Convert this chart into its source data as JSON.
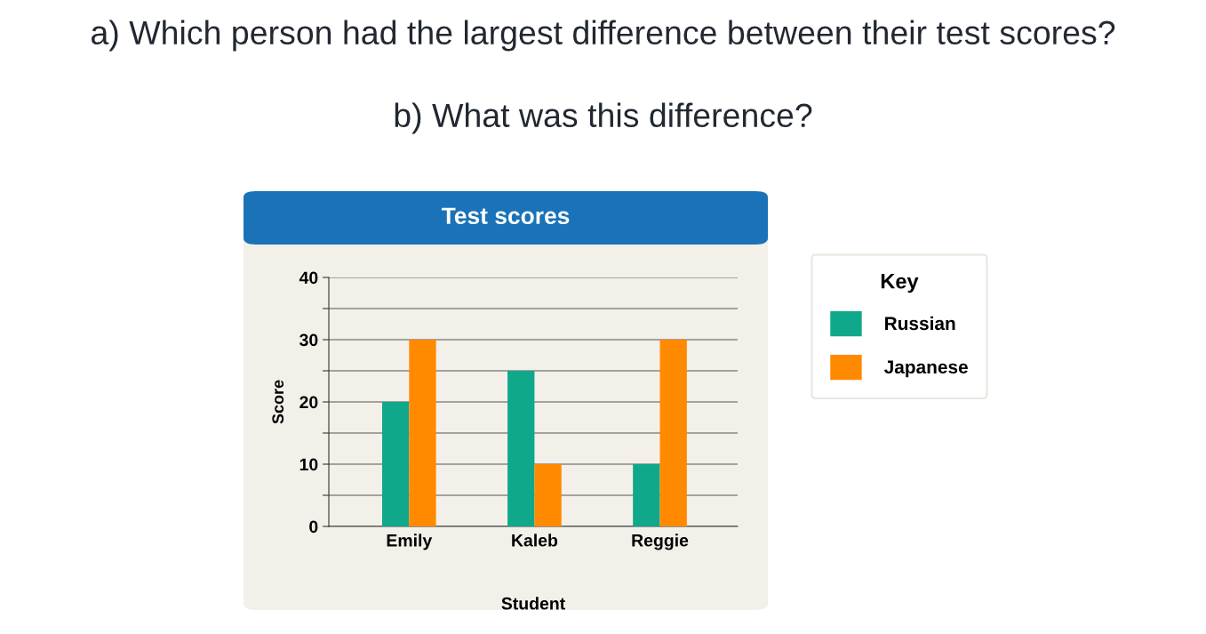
{
  "chart_data": {
    "type": "bar",
    "title": "Test scores",
    "xlabel": "Student",
    "ylabel": "Score",
    "legend_title": "Key",
    "legend": "right",
    "annotations": [
      "a) Which person had the largest difference between their test scores?",
      "b) What was this difference?"
    ],
    "categories": [
      "Emily",
      "Kaleb",
      "Reggie"
    ],
    "series": [
      {
        "name": "Russian",
        "color": "#10a88a",
        "values": [
          20,
          25,
          10
        ]
      },
      {
        "name": "Japanese",
        "color": "#ff8a00",
        "values": [
          30,
          10,
          30
        ]
      }
    ],
    "ylim": [
      0,
      40
    ],
    "yticks": [
      0,
      {
        "value": 5,
        "label": null
      },
      10,
      {
        "value": 15,
        "label": null
      },
      20,
      {
        "value": 25,
        "label": null
      },
      30,
      {
        "value": 35,
        "label": null
      },
      40
    ],
    "grid": "y"
  }
}
